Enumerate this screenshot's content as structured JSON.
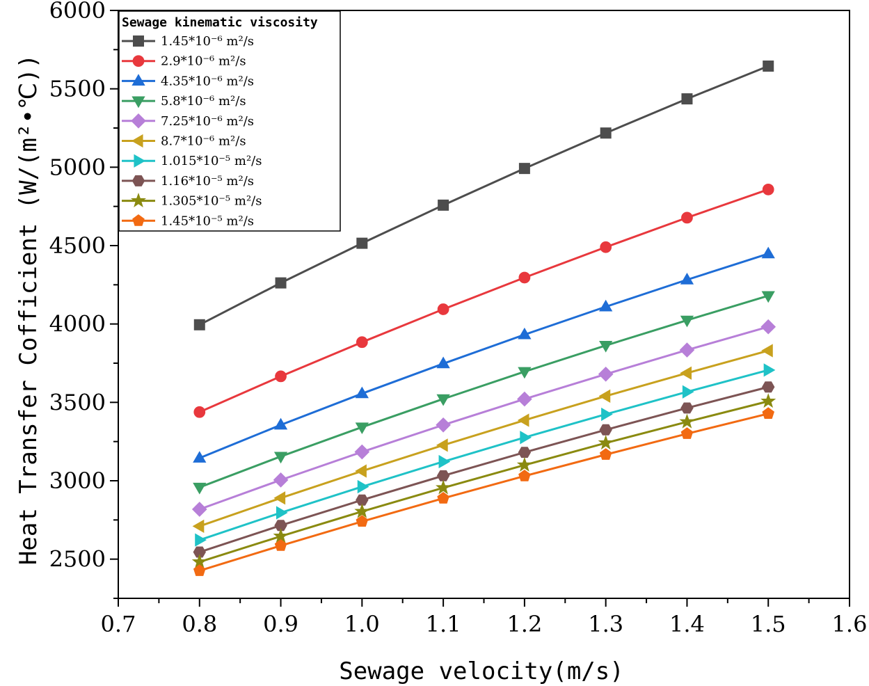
{
  "chart_data": {
    "type": "line",
    "xlabel": "Sewage velocity(m/s)",
    "ylabel": "Heat Transfer Cofficient (W/(m²•℃))",
    "xlim": [
      0.7,
      1.6
    ],
    "ylim": [
      2250,
      6000
    ],
    "x_ticks": [
      "0.7",
      "0.8",
      "0.9",
      "1.0",
      "1.1",
      "1.2",
      "1.3",
      "1.4",
      "1.5",
      "1.6"
    ],
    "y_ticks": [
      "2500",
      "3000",
      "3500",
      "4000",
      "4500",
      "5000",
      "5500",
      "6000"
    ],
    "x": [
      0.8,
      0.9,
      1.0,
      1.1,
      1.2,
      1.3,
      1.4,
      1.5
    ],
    "legend_title": "Sewage kinematic viscosity",
    "legend_position": "top-left",
    "grid": false,
    "series": [
      {
        "name": "1.45*10⁻⁶ m²/s",
        "color": "#4d4d4d",
        "marker": "square",
        "values": [
          3995,
          4262,
          4515,
          4758,
          4992,
          5218,
          5436,
          5645
        ]
      },
      {
        "name": "2.9*10⁻⁶ m²/s",
        "color": "#e8383d",
        "marker": "circle",
        "values": [
          3438,
          3666,
          3884,
          4094,
          4296,
          4490,
          4678,
          4858
        ]
      },
      {
        "name": "4.35*10⁻⁶ m²/s",
        "color": "#1e6dd6",
        "marker": "triangle-up",
        "values": [
          3145,
          3356,
          3556,
          3747,
          3932,
          4110,
          4282,
          4448
        ]
      },
      {
        "name": "5.8*10⁻⁶ m²/s",
        "color": "#3a9e63",
        "marker": "triangle-down",
        "values": [
          2958,
          3155,
          3342,
          3522,
          3696,
          3863,
          4024,
          4180
        ]
      },
      {
        "name": "7.25*10⁻⁶ m²/s",
        "color": "#b77fd8",
        "marker": "diamond",
        "values": [
          2818,
          3005,
          3184,
          3356,
          3521,
          3680,
          3834,
          3982
        ]
      },
      {
        "name": "8.7*10⁻⁶ m²/s",
        "color": "#c8a11e",
        "marker": "triangle-left",
        "values": [
          2710,
          2890,
          3062,
          3227,
          3386,
          3540,
          3687,
          3830
        ]
      },
      {
        "name": "1.015*10⁻⁵ m²/s",
        "color": "#1fc2c7",
        "marker": "triangle-right",
        "values": [
          2622,
          2796,
          2962,
          3122,
          3276,
          3424,
          3567,
          3706
        ]
      },
      {
        "name": "1.16*10⁻⁵ m²/s",
        "color": "#7d5454",
        "marker": "hexagon",
        "values": [
          2545,
          2715,
          2877,
          3032,
          3181,
          3325,
          3464,
          3598
        ]
      },
      {
        "name": "1.305*10⁻⁵ m²/s",
        "color": "#8a8a10",
        "marker": "star",
        "values": [
          2482,
          2646,
          2804,
          2955,
          3100,
          3241,
          3376,
          3507
        ]
      },
      {
        "name": "1.45*10⁻⁵ m²/s",
        "color": "#f26a12",
        "marker": "pentagon",
        "values": [
          2426,
          2586,
          2740,
          2888,
          3030,
          3167,
          3300,
          3428
        ]
      }
    ]
  }
}
